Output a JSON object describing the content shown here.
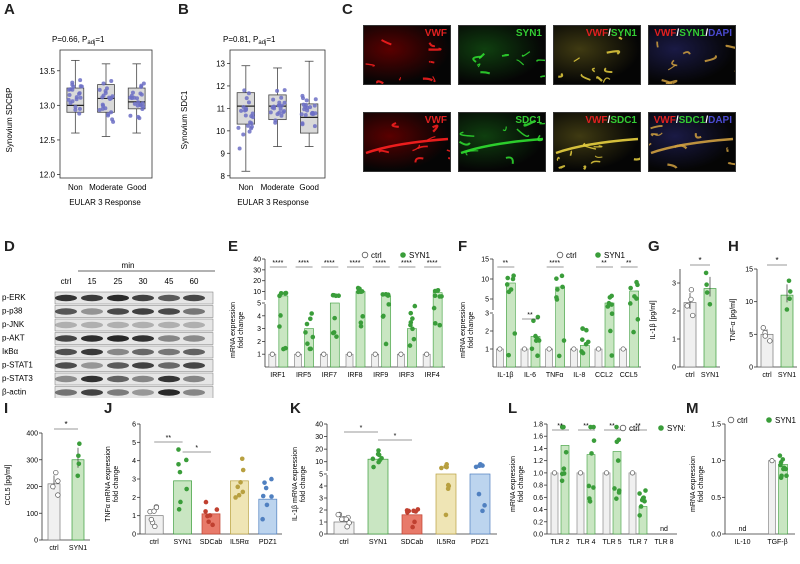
{
  "labels": {
    "A": "A",
    "B": "B",
    "C": "C",
    "D": "D",
    "E": "E",
    "F": "F",
    "G": "G",
    "H": "H",
    "I": "I",
    "J": "J",
    "K": "K",
    "L": "L",
    "M": "M"
  },
  "colors": {
    "green": "#3a9d3a",
    "light_green": "#c9e6c2",
    "box_gray": "#d9d9d9",
    "dot_blue": "#6c6fc4",
    "red": "#e02020",
    "micro_green": "#33cc33",
    "blue": "#4a4ad0",
    "yellow": "#f2e6a8",
    "red_bar": "#e87a6a",
    "blue_bar": "#bcd4ee",
    "yellow_bar": "#efe5b5"
  },
  "panel_a": {
    "stat": "P=0.66, P",
    "stat_sub": "adj",
    "stat_tail": "=1",
    "ylabel": "Synovium SDCBP",
    "xlabel": "EULAR 3 Response",
    "yticks": [
      "12.0",
      "12.5",
      "13.0",
      "13.5"
    ],
    "groups": [
      "Non",
      "Moderate",
      "Good"
    ]
  },
  "panel_b": {
    "stat": "P=0.81, P",
    "stat_sub": "adj",
    "stat_tail": "=1",
    "ylabel": "Synovium SDC1",
    "xlabel": "EULAR 3 Response",
    "yticks": [
      "8",
      "9",
      "10",
      "11",
      "12",
      "13"
    ],
    "groups": [
      "Non",
      "Moderate",
      "Good"
    ]
  },
  "panel_c": {
    "row1": [
      "VWF",
      "SYN1",
      "VWF/SYN1",
      "VWF/SYN1/DAPI"
    ],
    "row2": [
      "VWF",
      "SDC1",
      "VWF/SDC1",
      "VWF/SDC1/DAPI"
    ]
  },
  "panel_d": {
    "time_label": "min",
    "times": [
      "ctrl",
      "15",
      "25",
      "30",
      "45",
      "60"
    ],
    "proteins": [
      "p-ERK",
      "p-p38",
      "p-JNK",
      "p-AKT",
      "IκBα",
      "p-STAT1",
      "p-STAT3",
      "β-actin"
    ]
  },
  "panel_e": {
    "ylabel1": "mRNA expression",
    "ylabel2": "fold change",
    "legend": [
      "ctrl",
      "SYN1"
    ],
    "categories": [
      "IRF1",
      "IRF5",
      "IRF7",
      "IRF8",
      "IRF9",
      "IRF3",
      "IRF4"
    ],
    "stars": [
      "****",
      "****",
      "****",
      "****",
      "****",
      "****",
      "****"
    ],
    "yticks": [
      "1",
      "2",
      "3",
      "4",
      "5",
      "10",
      "20",
      "30",
      "40"
    ]
  },
  "panel_f": {
    "ylabel1": "mRNA expression",
    "ylabel2": "fold change",
    "legend": [
      "ctrl",
      "SYN1"
    ],
    "categories": [
      "IL-1β",
      "IL-6",
      "TNFα",
      "IL-8",
      "CCL2",
      "CCL5"
    ],
    "stars": [
      "**",
      "**",
      "****",
      "",
      "**",
      "**"
    ],
    "yticks": [
      "1",
      "2",
      "3",
      "5",
      "10",
      "15"
    ]
  },
  "panel_g": {
    "ylabel": "IL-1β [pg/ml]",
    "categories": [
      "ctrl",
      "SYN1"
    ],
    "star": "*",
    "yticks": [
      "0",
      "1",
      "2",
      "3"
    ]
  },
  "panel_h": {
    "ylabel": "TNF-α [pg/ml]",
    "categories": [
      "ctrl",
      "SYN1"
    ],
    "star": "*",
    "yticks": [
      "0",
      "5",
      "10",
      "15"
    ]
  },
  "panel_i": {
    "ylabel": "CCL5 [pg/ml]",
    "categories": [
      "ctrl",
      "SYN1"
    ],
    "star": "*",
    "yticks": [
      "0",
      "100",
      "200",
      "300",
      "400"
    ]
  },
  "panel_j": {
    "ylabel1": "TNFα mRNA expression",
    "ylabel2": "fold change",
    "categories": [
      "ctrl",
      "SYN1",
      "SDCab",
      "IL5Rα",
      "PDZ1"
    ],
    "stars": [
      "**",
      "*"
    ],
    "yticks": [
      "0",
      "1",
      "2",
      "3",
      "4",
      "5",
      "6"
    ]
  },
  "panel_k": {
    "ylabel1": "IL-1β mRNA expression",
    "ylabel2": "fold change",
    "categories": [
      "ctrl",
      "SYN1",
      "SDCab",
      "IL5Rα",
      "PDZ1"
    ],
    "stars": [
      "*",
      "*"
    ],
    "yticks": [
      "0",
      "1",
      "2",
      "3",
      "4",
      "5",
      "10",
      "20",
      "30",
      "40"
    ]
  },
  "panel_l": {
    "ylabel1": "mRNA expression",
    "ylabel2": "fold change",
    "legend": [
      "ctrl",
      "SYN1"
    ],
    "categories": [
      "TLR 2",
      "TLR 4",
      "TLR 5",
      "TLR 7",
      "TLR 8"
    ],
    "stars": [
      "**",
      "**",
      "**",
      "**"
    ],
    "nd": "nd",
    "yticks": [
      "0.0",
      "0.2",
      "0.4",
      "0.6",
      "0.8",
      "1.0",
      "1.2",
      "1.4",
      "1.6",
      "1.8"
    ]
  },
  "panel_m": {
    "ylabel1": "mRNA expression",
    "ylabel2": "fold change",
    "legend": [
      "ctrl",
      "SYN1"
    ],
    "categories": [
      "IL-10",
      "TGF-β"
    ],
    "nd": "nd",
    "yticks": [
      "0.0",
      "0.5",
      "1.0",
      "1.5"
    ]
  },
  "chart_data": [
    {
      "panel": "A",
      "type": "box",
      "ylabel": "Synovium SDCBP",
      "xlabel": "EULAR 3 Response",
      "categories": [
        "Non",
        "Moderate",
        "Good"
      ],
      "ylim": [
        11.95,
        13.8
      ],
      "median": [
        13.0,
        13.1,
        13.05
      ],
      "q1": [
        12.9,
        12.9,
        12.95
      ],
      "q3": [
        13.25,
        13.3,
        13.25
      ],
      "whisker_low": [
        12.6,
        12.55,
        12.6
      ],
      "whisker_high": [
        13.65,
        13.6,
        13.6
      ]
    },
    {
      "panel": "B",
      "type": "box",
      "ylabel": "Synovium SDC1",
      "xlabel": "EULAR 3 Response",
      "categories": [
        "Non",
        "Moderate",
        "Good"
      ],
      "ylim": [
        7.9,
        13.6
      ],
      "median": [
        11.1,
        11.1,
        10.6
      ],
      "q1": [
        10.3,
        10.5,
        9.9
      ],
      "q3": [
        11.7,
        11.6,
        11.2
      ],
      "whisker_low": [
        8.2,
        9.3,
        9.3
      ],
      "whisker_high": [
        12.9,
        12.8,
        13.1
      ]
    },
    {
      "panel": "G",
      "type": "bar",
      "ylabel": "IL-1β [pg/ml]",
      "categories": [
        "ctrl",
        "SYN1"
      ],
      "values": [
        2.3,
        2.8
      ],
      "ylim": [
        0,
        3.5
      ]
    },
    {
      "panel": "H",
      "type": "bar",
      "ylabel": "TNF-α [pg/ml]",
      "categories": [
        "ctrl",
        "SYN1"
      ],
      "values": [
        5,
        11
      ],
      "ylim": [
        0,
        15
      ]
    },
    {
      "panel": "I",
      "type": "bar",
      "ylabel": "CCL5 [pg/ml]",
      "categories": [
        "ctrl",
        "SYN1"
      ],
      "values": [
        210,
        300
      ],
      "ylim": [
        0,
        400
      ]
    },
    {
      "panel": "J",
      "type": "bar",
      "ylabel": "TNFα mRNA expression fold change",
      "categories": [
        "ctrl",
        "SYN1",
        "SDCab",
        "IL5Rα",
        "PDZ1"
      ],
      "values": [
        1.0,
        2.9,
        1.1,
        2.9,
        1.9
      ],
      "ylim": [
        0,
        6
      ]
    },
    {
      "panel": "L",
      "type": "bar",
      "ylabel": "mRNA expression fold change",
      "categories": [
        "TLR 2",
        "TLR 4",
        "TLR 5",
        "TLR 7",
        "TLR 8"
      ],
      "series": [
        {
          "name": "ctrl",
          "values": [
            1.0,
            1.0,
            1.0,
            1.0,
            0
          ]
        },
        {
          "name": "SYN1",
          "values": [
            1.45,
            1.3,
            1.35,
            0.45,
            0
          ]
        }
      ],
      "ylim": [
        0,
        1.8
      ]
    },
    {
      "panel": "M",
      "type": "bar",
      "ylabel": "mRNA expression fold change",
      "categories": [
        "IL-10",
        "TGF-β"
      ],
      "series": [
        {
          "name": "ctrl",
          "values": [
            0,
            1.0
          ]
        },
        {
          "name": "SYN1",
          "values": [
            0,
            0.95
          ]
        }
      ],
      "ylim": [
        0,
        1.5
      ]
    }
  ]
}
